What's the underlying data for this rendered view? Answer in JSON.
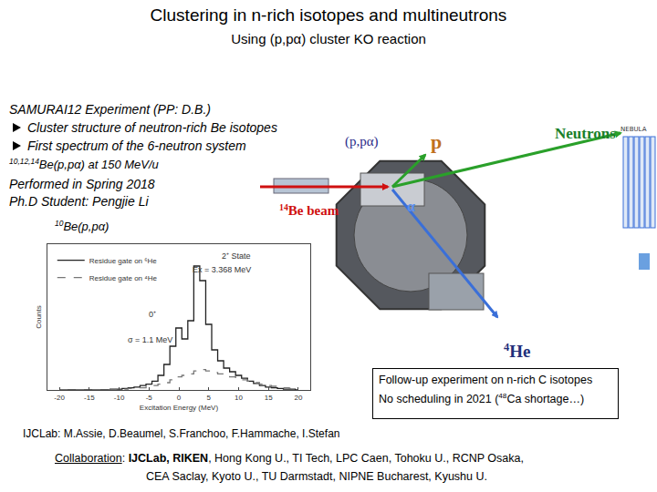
{
  "title": "Clustering in n-rich isotopes and multineutrons",
  "subtitle": "Using (p,pα) cluster KO reaction",
  "experiment": "SAMURAI12  Experiment (PP: D.B.)",
  "bullets": [
    "Cluster structure of neutron-rich Be isotopes",
    "First spectrum of the 6-neutron system"
  ],
  "reaction_line": [
    {
      "sup": "10,12,14"
    },
    {
      "t": "Be(p,pα) at 150 MeV/u"
    }
  ],
  "performed": [
    "Performed in Spring 2018",
    "Ph.D Student: Pengjie Li"
  ],
  "chart_label": [
    {
      "sup": "10"
    },
    {
      "t": "Be(p,pα)"
    }
  ],
  "diagram": {
    "reaction": "(p,pα)",
    "proton": "p",
    "neutrons": "Neutrons",
    "beam": [
      {
        "sup": "14"
      },
      {
        "t": "Be beam"
      }
    ],
    "alpha": "α",
    "he4": [
      {
        "sup": "4"
      },
      {
        "t": "He"
      }
    ],
    "nebula": "NEBULA"
  },
  "followup": [
    [
      {
        "t": "Follow-up experiment on n-rich C isotopes"
      }
    ],
    [
      {
        "t": "No scheduling in 2021 ("
      },
      {
        "sup": "48"
      },
      {
        "t": "Ca shortage…)"
      }
    ]
  ],
  "ijclab": [
    {
      "t": "IJCLab: M.Assie, D.Beaumel, S.Franchoo, F.Hammache, I.Stefan"
    }
  ],
  "collaboration": [
    [
      {
        "u": "Collaboration"
      },
      {
        "t": ":  "
      },
      {
        "b": "IJCLab, RIKEN"
      },
      {
        "t": ", Hong Kong U., TI Tech, LPC Caen, Tohoku U.,  RCNP Osaka,"
      }
    ],
    [
      {
        "t": "CEA Saclay, Kyoto U., TU Darmstadt, NIPNE Bucharest, Kyushu U."
      }
    ]
  ],
  "chart_data": {
    "type": "line",
    "x_label": "Excitation Energy (MeV)",
    "y_label": "Counts",
    "x": [
      -20,
      -19,
      -18,
      -17,
      -16,
      -15,
      -14,
      -13,
      -12,
      -11,
      -10,
      -9,
      -8,
      -7,
      -6,
      -5,
      -4,
      -3,
      -2,
      -1,
      0,
      1,
      2,
      3,
      4,
      5,
      6,
      7,
      8,
      9,
      10,
      11,
      12,
      13,
      14,
      15,
      16,
      17,
      18,
      19,
      20
    ],
    "series": [
      {
        "name": "Residue gate on ⁶He",
        "color": "#222222",
        "line_style": "solid",
        "values": [
          0,
          0,
          0,
          0,
          0,
          0,
          0,
          0,
          0,
          1,
          1,
          2,
          3,
          4,
          6,
          8,
          12,
          20,
          35,
          60,
          85,
          70,
          95,
          170,
          150,
          90,
          55,
          40,
          30,
          25,
          20,
          16,
          12,
          9,
          6,
          4,
          3,
          2,
          1,
          1,
          0
        ]
      },
      {
        "name": "Residue gate on ⁴He",
        "color": "#777777",
        "line_style": "dashed",
        "values": [
          0,
          0,
          0,
          0,
          0,
          0,
          0,
          0,
          0,
          0,
          1,
          1,
          2,
          2,
          3,
          4,
          6,
          8,
          10,
          14,
          18,
          20,
          22,
          26,
          28,
          26,
          24,
          22,
          20,
          18,
          16,
          14,
          12,
          10,
          8,
          6,
          5,
          4,
          3,
          2,
          1
        ]
      }
    ],
    "xlim": [
      -22,
      22
    ],
    "xticks": [
      -20,
      -15,
      -10,
      -5,
      0,
      5,
      10,
      15,
      20
    ],
    "ylim": [
      0,
      200
    ],
    "tick_labels": "x",
    "grid": false,
    "legend": "top-left",
    "annotations": [
      "0⁺",
      "σ = 1.1 MeV",
      "2⁺ State",
      "Ex = 3.368 MeV"
    ]
  }
}
